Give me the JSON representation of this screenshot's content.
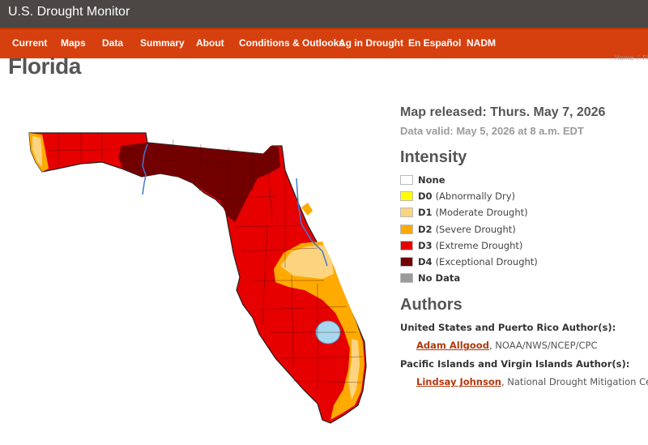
{
  "header": {
    "site_title": "U.S. Drought Monitor"
  },
  "nav": [
    {
      "label": "Current"
    },
    {
      "label": "Maps"
    },
    {
      "label": "Data"
    },
    {
      "label": "Summary"
    },
    {
      "label": "About"
    },
    {
      "label": "Conditions & Outlooks"
    },
    {
      "label": "Ag in Drought"
    },
    {
      "label": "En Español"
    },
    {
      "label": "NADM"
    }
  ],
  "breadcrumb": {
    "home": "Home",
    "sep": "/",
    "current": "Fl"
  },
  "page_title": "Florida",
  "map_info": {
    "released": "Map released: Thurs. May 7, 2026",
    "valid": "Data valid: May 5, 2026 at 8 a.m. EDT"
  },
  "intensity": {
    "heading": "Intensity",
    "items": [
      {
        "code": "None",
        "desc": "",
        "color": "#ffffff"
      },
      {
        "code": "D0",
        "desc": "(Abnormally Dry)",
        "color": "#ffff00"
      },
      {
        "code": "D1",
        "desc": "(Moderate Drought)",
        "color": "#fcd37f"
      },
      {
        "code": "D2",
        "desc": "(Severe Drought)",
        "color": "#ffaa00"
      },
      {
        "code": "D3",
        "desc": "(Extreme Drought)",
        "color": "#e60000"
      },
      {
        "code": "D4",
        "desc": "(Exceptional Drought)",
        "color": "#730000"
      },
      {
        "code": "No Data",
        "desc": "",
        "color": "#9b9b9b"
      }
    ]
  },
  "authors": {
    "heading": "Authors",
    "groups": [
      {
        "title": "United States and Puerto Rico Author(s):",
        "name": "Adam Allgood",
        "affil": ", NOAA/NWS/NCEP/CPC"
      },
      {
        "title": "Pacific Islands and Virgin Islands Author(s):",
        "name": "Lindsay Johnson",
        "affil": ", National Drought Mitigation Center"
      }
    ]
  }
}
